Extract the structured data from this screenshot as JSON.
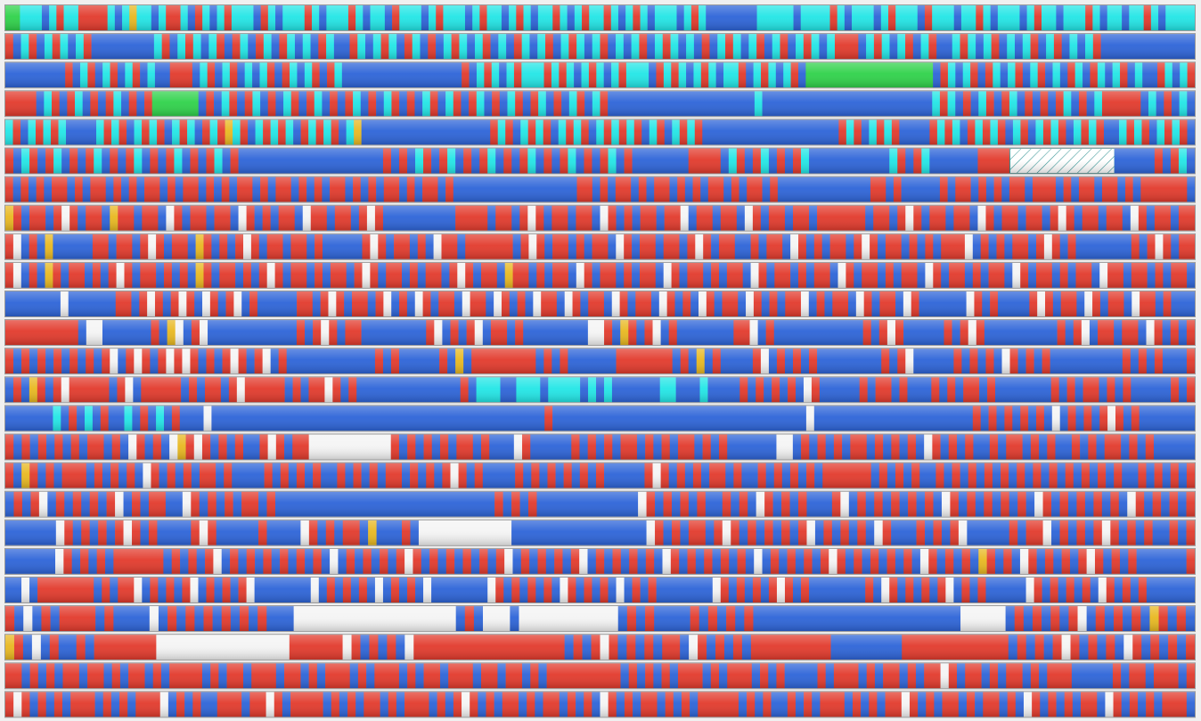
{
  "cluster_map": {
    "states": {
      "b": {
        "color": "#2d64d8"
      },
      "r": {
        "color": "#e23a2c"
      },
      "w": {
        "color": "#f4f4f4"
      },
      "c": {
        "color": "#22e6e6"
      },
      "g": {
        "color": "#2fd24a"
      },
      "y": {
        "color": "#e8b820"
      },
      "x": {
        "color": "#2a8f8f",
        "hatched": true
      }
    },
    "rows": [
      "ggcccbcrccrrrrcbcyccbcrrcbrcbcrcccbrcbcccrcbcccrcbccbrcccbcrcccbcrccbcrcbccrcbcrccrcbcrcbcccbcrcbbbbbbbcccccbccccrcbcccbcrcccbrcccbccrcbcccbcrccbcccrcbccbccrcbcccc",
      "rbcrbcrcbcrbbbbbbbbcrbcrcbcrbrcbrcbrcbcbrcbbrcbcrcbrcbrbcrcbcrbcbrcbcrbcrcbcrbcbcrbcrcbcbrbcrcbcrbcrbcrcbcrrrbcrcbcrbcrbbcrcbcrbcbcrbcrbcbcrbbbbbbbbbbbb",
      "bbbbbbbbrbcrbcrbcrbcbbrrrbcrbcrbcbcrbrcbcrbrcbbbbbbbbbbbbbbbbrbcrcbcrcccrcrcbcrcbcrcccbrcrcbcrcbccrbcrcbcrbgggggggggggggggggbrcbcrbrcbcrbcrbcbrcbrcbcrbcbbrcbcr",
      "rrrrbcrbrcbrbrcbrbrggggggbrbcrbrcbrbcrbrcbrbrcbrbcrbrbcrbcrbrcbrbcrbrcbrbcrbcrbbbbbbbbbbbbbbbbbbbcbbbbbbbbbbbbbbbbbbbbbbcrcbrbcrbrcbrbrbrcbrbcrrrrrbcbrbcb",
      "crbcrcrcbbbbcrcrbcrcrbcrcbrcrycrbcrcrcbrcrcrbcybbbbbbbbbbbbbbbbbrcrbcrcrbcrcrbcrcrcrbcrbcrcrbbbbbbbbbbbbbbbbbbrcrbcrcrbbbbrcrcbrcrcrbcrbcrcrbcrcrbbcrcrbcrcrb",
      "rbcrbrcbrbrcbrbrcbrbrcbrbrcbrbbbbbbbbbbbbbbbbbbrbrbcrbrcbrbrcbrbrcbrbrcbrbrcbrbbbbbbbrrrrbcrbrcbrbrcbbbbbbbbbbcrbrcbbbbbbrrrrxxxxxxxxxxxxxbbbbbrbrcb",
      "rbrbrbrrbrbrrbrbrbrrbrbrrbrbrbrrbrbrrbrbrbrrbrbrbrrbrbrrbrbbbbbbbbbbbbbbbbrrbrbrrbrbrrbrbrbrrbrbrrbrbbbbbbbbbbbbrrbrbbbbbrbrrbrbrbrrbrrrbrbrrbrrbrbrrrrrrb",
      "yrbrrbrwrbrrbyrrbrrbwrbrrbrrbwrbrbrrbwrrbrrbrwrbbbbbbbbbrrrrbrrbrwrbrrbrrbwrbrbrrbrrwbrrbrrbwrbrrbrrbrrrrrrbrrbrwrbrrbrrbwrbrrbrrbrwrbrrbrrbwrbrrbrr",
      "rwbrbybbbbbrrbrrbrwrbrrbyrbrbrwrbrrbrrbrbbbbbrwrbrrbrbwrrbrrrrrrbrwrbrrbrbrrbwrbrrbrrbrwrbrrbbrbrrbwrbrbrrbrwrbrrbrbrbrrrwbrbrbrrbrwrbrbbbbbbbrbrwrbrr",
      "rwbrbyrbrrbrbrwrbrrbrbrbyrbrrbrbrwrbrrbrbrrbrwrbrrbrbrrbrwrbrrbyrrbrbrrbwrbrrbrbrrbwrbrrbrbrrbwrbrrbrbrrbwrbrrbrbrrbwrbrrbrbrrbwrbrrbrbrrbwrrbrrbrbrrb",
      "bbbbbbbwbbbbbbrrbrwrbrwrbwrbrwbrbbbbbrrbrwrbrrbrwbrbwrbrrbwrrbwrbrbwrrbwrbrrbwrbrrbwrbrbwrbrrbwrbrbrrwbrbrrbwrbrrbwrbbbbbbwrbrbbbbrwrbrrbwrbrrbwrrbrbbb",
      "rrrrrrrrrbwwbbbbbbrbywbrwbbbbbbbbbbbrbrwrbrrbbbbbbbbrwbrbrwbrrbrbbbbbbbbwwrbyrbrwbrbbbbbbbrrwbrbbbbbbbbbbbrbrwrbbbbbrbrwrbbbbbbbbbrbrwbrrbrrbwrbrbr",
      "rbrbrbrbrbrbrwbrwrbrwrwrbrbrwrbrwbrbbbbbbbbbbbrbrbbbbbrbybrrrrrrrrbrbrbbbbbbrrrrrrrbrbybrbbbbrwbrbrbrbbbbbbbbrbrwbbbbbrbrbrbwrbrbrbbbbbbbbbrbrbrbbbr",
      "brbyrbrwrrrrrbrwbrrrrrbrbrrbrwrrrrrbrbrrwrbrbbbbbbbbbbbbbrbcccbbcccbccccbcbcbbbbbbccbbbcbbbbrbrbrbrbwrbbbbbrbrrbrbbbrbrbrrbrbbbbbbbrbrbrrbrbrbbbbbrbr",
      "bbbbbbcbrbcbrbbcbrbcbrbbbwbbbbbbbbbbbbbbbbbbbbbbbbbbbbbbbbbbbbbbbbbbrbbbbbbbbbbbbbbbbbbbbbbbbbbbbbbbbwbbbbbbbbbbbbbbbbbbbbrbrbrbrbrbwbrbrbrwrbrbbbbbbb",
      "rbrbrbrbrbrrbrbwrbrbwyrwrbrbrbbrwrbrrwwwwwwwwwwrbrbrbrbrrbrbbbwrbbbbbrbrbrbrrbrbrbrrbrbrbbbbbbwwbrbrbrbrrbrbrbrbwrbrbrbbrbrrbrbrbbrbrbrrbrbrbbbbb",
      "rbyrbrbrrrbrbrbrbwrbrbrbrrbrbbbbrbrbrbrbbrbrbrbrrbrbrbrwrbrbbbbrbrbrbrbrbrbbbbbrwrbrbrbrrbrbbrbrbrbrbrrrrrrbrbrbrbbrbrbrbrbrbrbrbrbrbrbrbrbbrbrbrbr",
      "brbrwbrbrbrbrwbrbrrbbwrbrbrbrrbrbbbbbbbbbbbbbbbbbbbbbbbbbbrbrbrbbbbbbbbbbbbwrbrbrbrbbrbrbwrbrbrbbbrwbrbrbrbrbrbwrbrbrbrbrbwrbrbrbrbrbwrbrbrbr",
      "bbbbbbwrbrbrbrwrbrbbbbrwrbbbbbrbbbbwrbrbrrbybbbrbwwwwwwwwwwwbbbbbbbbbbbbbbbbwrbrbrrbrwrbrbrbrbrwbrbrbrbwrbbbrbrbrwbbbbbrbrrwbrbrbrwrbrbrbbrbr",
      "bbbbbbwrbrbrbrrrrrrbrbrbrwbrbrbrbrbrbrbwbrbrbrbrwrbrbrbrbrbrwbrbrbrbrwbrbrbrbrbwrbrbrbrbrbwbrbrbrbrwrbrbrbrbrbwrbrbrbyrbrbwrbrbrbrwrbrbrbbbbbbr",
      "bbwbrrrrrrrbrbrrwbrbrbrwbrbrbrwbbbbbbbwbrbrbrbwbrbrbwbbbbbbbwrbrbrbrbwrbrbrbwbrbrbbbbbbbwrbrbrbrwrbrbbbbbbbrbwrbrbrbrwbrbrbbbbbwrbrbrbrbwrbrbrbbbbbb",
      "rbwbrbrrrrbrbbbbwbrbrbrbrbrbrbbbwwwwwwwwwwwwwwwwwwbrbwwwbwwwwwwwwwwwbrbrbbbbrbrbrbrbbbbbbbbbbbbbbbbbbbbbbbwwwwwbrbrbrbrwbrbrbrbyrbrb",
      "yrbwbrbbrbrrrrrrrwwwwwwwwwwwwwwwrrrrrrwrbrbrbwrrrrrrrrrrrrrrrrrbrbrwrbrbrbrrbwrbrbrbrrrrrrrrrbbbbbbbbrrrrrrrrrrrrbrbrbrwrbrbrbwrbrbrbr",
      "rrbrbrbrrbrrbrbrrbrbrrrrbrbrrbrrrbrrbrbrrrbrbrrrbrbrrbrrrbrrbrrbrbrrrrrrrrrbrbrbrbrrrbrbrrrbrbrbbbbrbrrrbrbrrbrbrrwrbrrbrbrrbrbrrrbbbbbrbrrbrrrbr",
      "rwrbrbrbrrrbrbrbrrrwbrbrbbrrrbrrwrbrrrrbrbrbrrbrbrrrbrbrwrbrbrrbrbrrbrbrbwrbrbrrbrbrbrrrrrbrbrbbrbrbrrrbrbrbrrwrbrbrrbrbrrbrbwrbrbrbrrbwrbrbrbrrrb"
    ]
  }
}
